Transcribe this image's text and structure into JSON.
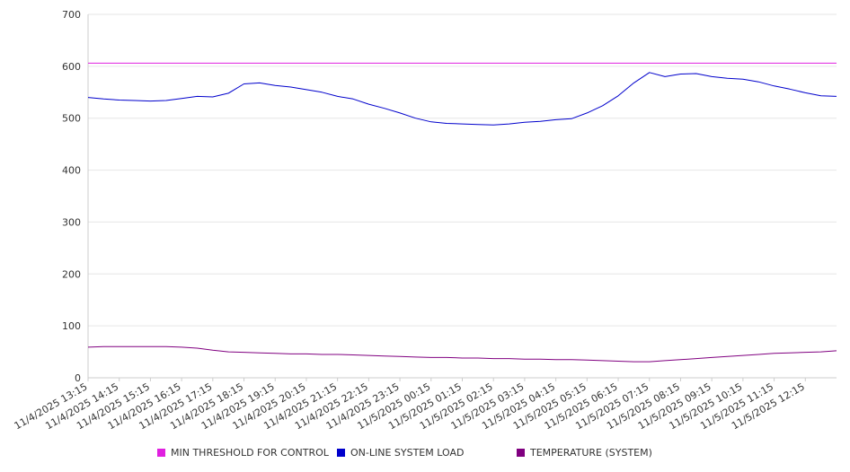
{
  "chart_data": {
    "type": "line",
    "title": "",
    "xlabel": "",
    "ylabel": "",
    "ylim": [
      0,
      700
    ],
    "yticks": [
      0,
      100,
      200,
      300,
      400,
      500,
      600,
      700
    ],
    "grid": true,
    "legend_position": "bottom",
    "x_tick_labels": [
      "11/4/2025 13:15",
      "11/4/2025 14:15",
      "11/4/2025 15:15",
      "11/4/2025 16:15",
      "11/4/2025 17:15",
      "11/4/2025 18:15",
      "11/4/2025 19:15",
      "11/4/2025 20:15",
      "11/4/2025 21:15",
      "11/4/2025 22:15",
      "11/4/2025 23:15",
      "11/5/2025 00:15",
      "11/5/2025 01:15",
      "11/5/2025 02:15",
      "11/5/2025 03:15",
      "11/5/2025 04:15",
      "11/5/2025 05:15",
      "11/5/2025 06:15",
      "11/5/2025 07:15",
      "11/5/2025 08:15",
      "11/5/2025 09:15",
      "11/5/2025 10:15",
      "11/5/2025 11:15",
      "11/5/2025 12:15"
    ],
    "x": [
      "11/4/2025 13:15",
      "11/4/2025 13:45",
      "11/4/2025 14:15",
      "11/4/2025 14:45",
      "11/4/2025 15:15",
      "11/4/2025 15:45",
      "11/4/2025 16:15",
      "11/4/2025 16:45",
      "11/4/2025 17:15",
      "11/4/2025 17:45",
      "11/4/2025 18:15",
      "11/4/2025 18:45",
      "11/4/2025 19:15",
      "11/4/2025 19:45",
      "11/4/2025 20:15",
      "11/4/2025 20:45",
      "11/4/2025 21:15",
      "11/4/2025 21:45",
      "11/4/2025 22:15",
      "11/4/2025 22:45",
      "11/4/2025 23:15",
      "11/4/2025 23:45",
      "11/5/2025 00:15",
      "11/5/2025 00:45",
      "11/5/2025 01:15",
      "11/5/2025 01:45",
      "11/5/2025 02:15",
      "11/5/2025 02:45",
      "11/5/2025 03:15",
      "11/5/2025 03:45",
      "11/5/2025 04:15",
      "11/5/2025 04:45",
      "11/5/2025 05:15",
      "11/5/2025 05:45",
      "11/5/2025 06:15",
      "11/5/2025 06:45",
      "11/5/2025 07:15",
      "11/5/2025 07:45",
      "11/5/2025 08:15",
      "11/5/2025 08:45",
      "11/5/2025 09:15",
      "11/5/2025 09:45",
      "11/5/2025 10:15",
      "11/5/2025 10:45",
      "11/5/2025 11:15",
      "11/5/2025 11:45",
      "11/5/2025 12:15",
      "11/5/2025 12:45",
      "11/5/2025 13:15"
    ],
    "series": [
      {
        "name": "MIN THRESHOLD FOR CONTROL",
        "color": "#e020e0",
        "values": [
          606,
          606,
          606,
          606,
          606,
          606,
          606,
          606,
          606,
          606,
          606,
          606,
          606,
          606,
          606,
          606,
          606,
          606,
          606,
          606,
          606,
          606,
          606,
          606,
          606,
          606,
          606,
          606,
          606,
          606,
          606,
          606,
          606,
          606,
          606,
          606,
          606,
          606,
          606,
          606,
          606,
          606,
          606,
          606,
          606,
          606,
          606,
          606,
          606
        ]
      },
      {
        "name": "ON-LINE SYSTEM LOAD",
        "color": "#0000cc",
        "values": [
          540,
          537,
          535,
          534,
          533,
          534,
          538,
          542,
          541,
          548,
          566,
          568,
          563,
          560,
          555,
          550,
          542,
          537,
          527,
          519,
          510,
          500,
          493,
          490,
          489,
          488,
          487,
          489,
          492,
          494,
          497,
          499,
          510,
          524,
          543,
          568,
          588,
          580,
          585,
          586,
          580,
          577,
          575,
          570,
          562,
          556,
          549,
          543,
          542
        ]
      },
      {
        "name": "TEMPERATURE (SYSTEM)",
        "color": "#800080",
        "values": [
          59,
          60,
          60,
          60,
          60,
          60,
          59,
          57,
          53,
          50,
          49,
          48,
          47,
          46,
          46,
          45,
          45,
          44,
          43,
          42,
          41,
          40,
          39,
          39,
          38,
          38,
          37,
          37,
          36,
          36,
          35,
          35,
          34,
          33,
          32,
          31,
          31,
          33,
          35,
          37,
          39,
          41,
          43,
          45,
          47,
          48,
          49,
          50,
          52
        ]
      }
    ]
  }
}
